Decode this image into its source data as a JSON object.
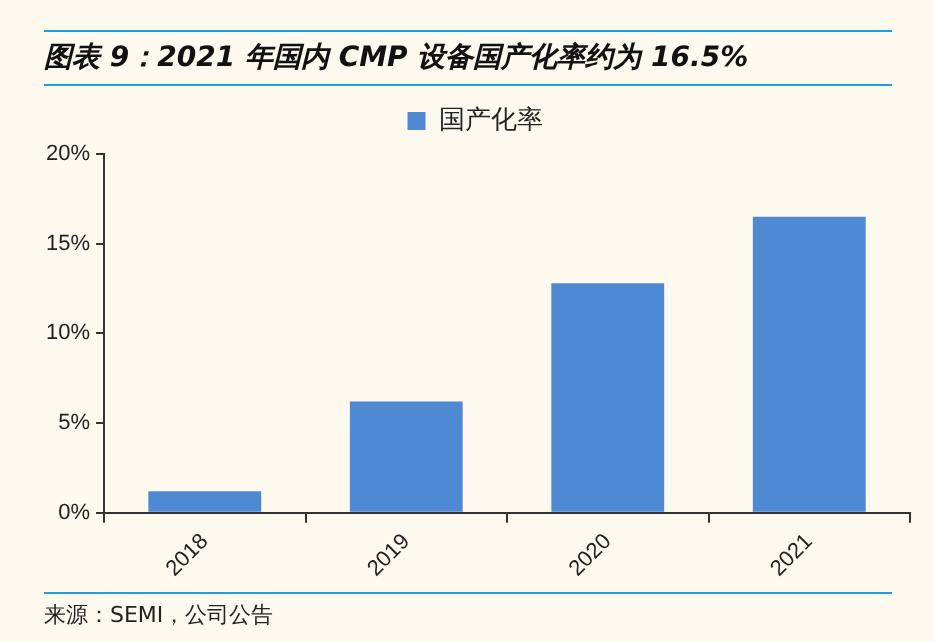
{
  "chart_data": {
    "type": "bar",
    "title": "图表 9：2021 年国内 CMP 设备国产化率约为 16.5%",
    "categories": [
      "2018",
      "2019",
      "2020",
      "2021"
    ],
    "series": [
      {
        "name": "国产化率",
        "color": "#4f88d3",
        "values": [
          1.2,
          6.2,
          12.8,
          16.5
        ]
      }
    ],
    "ylim": [
      0,
      20
    ],
    "yticks": [
      {
        "value": 0,
        "label": "0%"
      },
      {
        "value": 5,
        "label": "5%"
      },
      {
        "value": 10,
        "label": "10%"
      },
      {
        "value": 15,
        "label": "15%"
      },
      {
        "value": 20,
        "label": "20%"
      }
    ],
    "grid": false,
    "legend": "top",
    "annotations": [
      "来源：SEMI，公司公告"
    ]
  }
}
